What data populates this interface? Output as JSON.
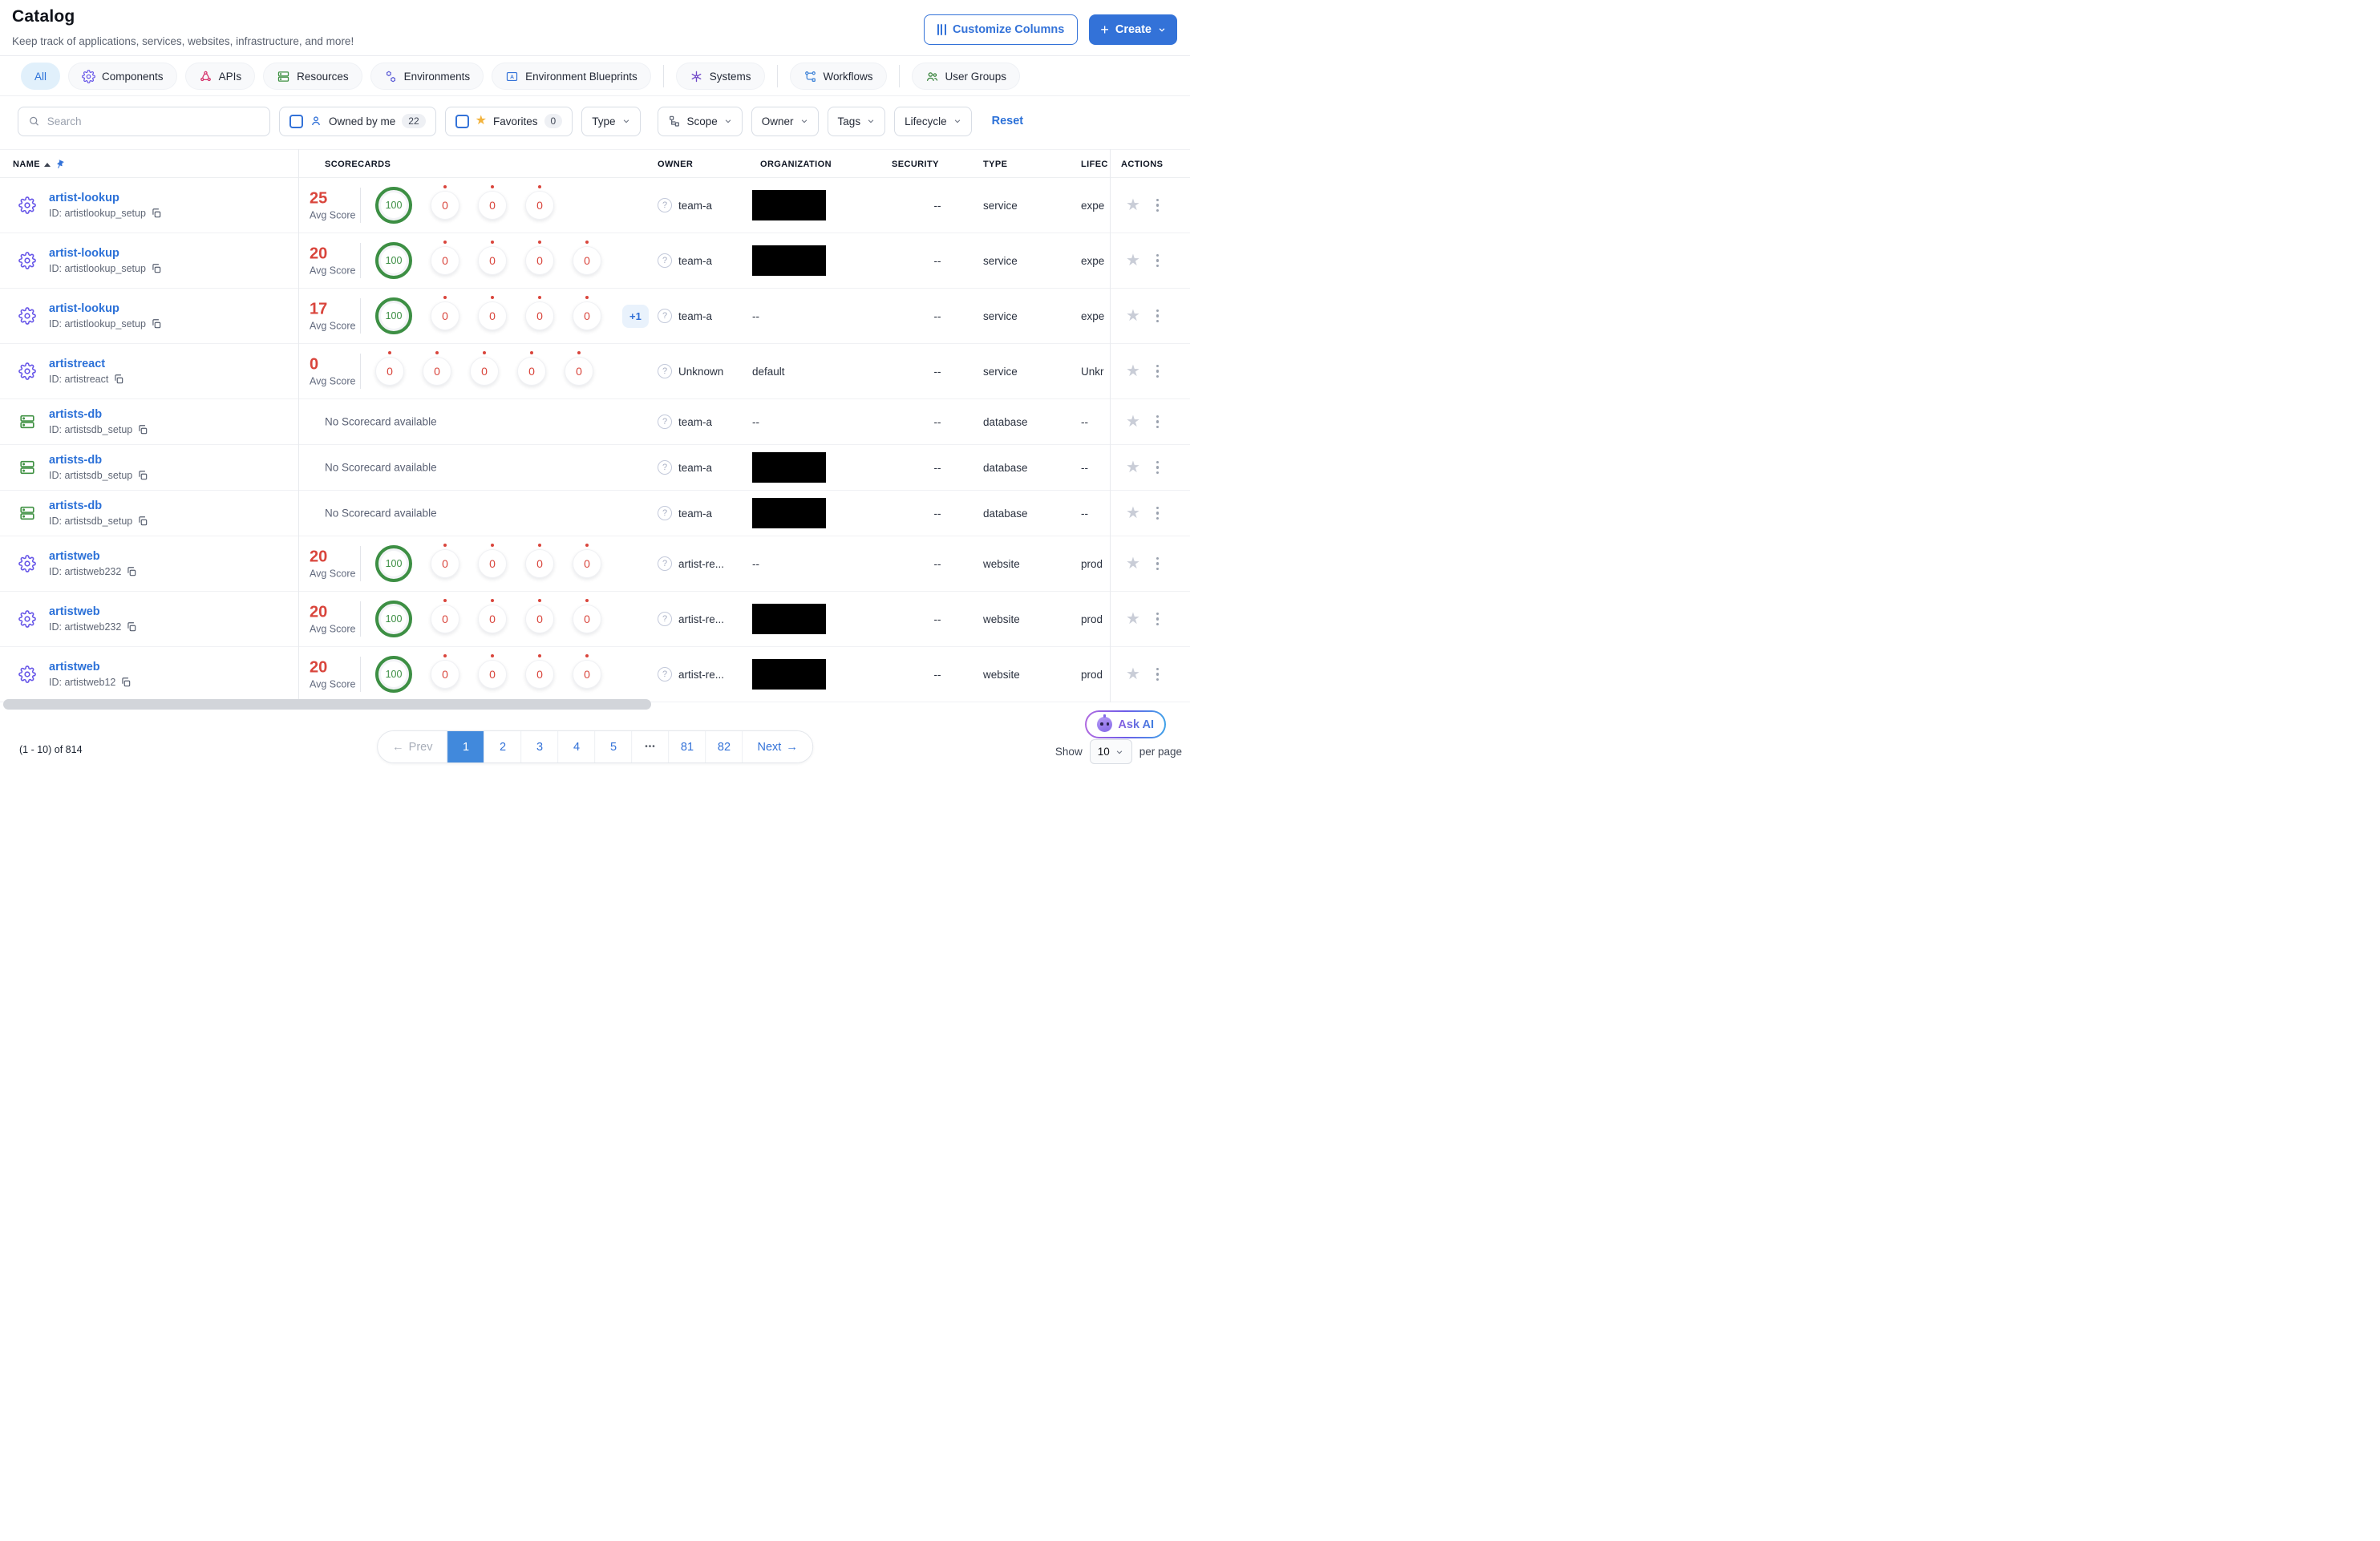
{
  "page": {
    "title": "Catalog",
    "subtitle": "Keep track of applications, services, websites, infrastructure, and more!"
  },
  "actions": {
    "customize_columns": "Customize Columns",
    "create": "Create"
  },
  "tabs": [
    {
      "label": "All",
      "icon": "none",
      "active": true
    },
    {
      "label": "Components",
      "icon": "gear-icon",
      "color": "#6554e8"
    },
    {
      "label": "APIs",
      "icon": "api-network-icon",
      "color": "#d6336c"
    },
    {
      "label": "Resources",
      "icon": "server-icon",
      "color": "#3f9142"
    },
    {
      "label": "Environments",
      "icon": "hexagons-icon",
      "color": "#5b5bd6"
    },
    {
      "label": "Environment Blueprints",
      "icon": "blueprint-icon",
      "color": "#3372d8"
    },
    {
      "label": "Systems",
      "icon": "system-star-icon",
      "color": "#7048c8",
      "divider_before": true
    },
    {
      "label": "Workflows",
      "icon": "workflow-icon",
      "color": "#4285d8",
      "divider_before": true
    },
    {
      "label": "User Groups",
      "icon": "users-icon",
      "color": "#2e7d32",
      "divider_before": true
    }
  ],
  "filters": {
    "search_placeholder": "Search",
    "owned_by_me": {
      "label": "Owned by me",
      "count": "22"
    },
    "favorites": {
      "label": "Favorites",
      "count": "0"
    },
    "type_label": "Type",
    "scope_label": "Scope",
    "owner_label": "Owner",
    "tags_label": "Tags",
    "lifecycle_label": "Lifecycle",
    "reset": "Reset"
  },
  "table": {
    "columns": {
      "name": "NAME",
      "scorecards": "SCORECARDS",
      "owner": "OWNER",
      "organization": "ORGANIZATION",
      "security": "SECURITY",
      "type": "TYPE",
      "lifecycle": "LIFEC",
      "actions": "ACTIONS"
    },
    "avg_score_label": "Avg Score",
    "no_scorecard_text": "No Scorecard available",
    "rows": [
      {
        "icon": "gear",
        "name": "artist-lookup",
        "id": "ID: artistlookup_setup",
        "avg": "25",
        "circles": [
          "100",
          "0",
          "0",
          "0"
        ],
        "owner": "team-a",
        "org": "redacted",
        "security": "--",
        "type": "service",
        "lifecycle": "expe"
      },
      {
        "icon": "gear",
        "name": "artist-lookup",
        "id": "ID: artistlookup_setup",
        "avg": "20",
        "circles": [
          "100",
          "0",
          "0",
          "0",
          "0"
        ],
        "owner": "team-a",
        "org": "redacted",
        "security": "--",
        "type": "service",
        "lifecycle": "expe"
      },
      {
        "icon": "gear",
        "name": "artist-lookup",
        "id": "ID: artistlookup_setup",
        "avg": "17",
        "circles": [
          "100",
          "0",
          "0",
          "0",
          "0"
        ],
        "extra": "+1",
        "owner": "team-a",
        "org": "--",
        "security": "--",
        "type": "service",
        "lifecycle": "expe"
      },
      {
        "icon": "gear",
        "name": "artistreact",
        "id": "ID: artistreact",
        "avg": "0",
        "circles": [
          "0",
          "0",
          "0",
          "0",
          "0"
        ],
        "owner": "Unknown",
        "org": "default",
        "security": "--",
        "type": "service",
        "lifecycle": "Unkr"
      },
      {
        "icon": "database",
        "name": "artists-db",
        "id": "ID: artistsdb_setup",
        "no_scorecard": true,
        "compact": true,
        "owner": "team-a",
        "org": "--",
        "security": "--",
        "type": "database",
        "lifecycle": "--"
      },
      {
        "icon": "database",
        "name": "artists-db",
        "id": "ID: artistsdb_setup",
        "no_scorecard": true,
        "compact": true,
        "owner": "team-a",
        "org": "redacted",
        "security": "--",
        "type": "database",
        "lifecycle": "--"
      },
      {
        "icon": "database",
        "name": "artists-db",
        "id": "ID: artistsdb_setup",
        "no_scorecard": true,
        "compact": true,
        "owner": "team-a",
        "org": "redacted",
        "security": "--",
        "type": "database",
        "lifecycle": "--"
      },
      {
        "icon": "gear",
        "name": "artistweb",
        "id": "ID: artistweb232",
        "avg": "20",
        "circles": [
          "100",
          "0",
          "0",
          "0",
          "0"
        ],
        "owner": "artist-re...",
        "org": "--",
        "security": "--",
        "type": "website",
        "lifecycle": "prod"
      },
      {
        "icon": "gear",
        "name": "artistweb",
        "id": "ID: artistweb232",
        "avg": "20",
        "circles": [
          "100",
          "0",
          "0",
          "0",
          "0"
        ],
        "owner": "artist-re...",
        "org": "redacted",
        "security": "--",
        "type": "website",
        "lifecycle": "prod"
      },
      {
        "icon": "gear",
        "name": "artistweb",
        "id": "ID: artistweb12",
        "avg": "20",
        "circles": [
          "100",
          "0",
          "0",
          "0",
          "0"
        ],
        "owner": "artist-re...",
        "org": "redacted",
        "security": "--",
        "type": "website",
        "lifecycle": "prod"
      }
    ]
  },
  "footer": {
    "range": "(1 - 10) of 814",
    "prev": "Prev",
    "next": "Next",
    "pages": [
      "1",
      "2",
      "3",
      "4",
      "5",
      "•••",
      "81",
      "82"
    ],
    "active_page": "1",
    "ask_ai": "Ask AI",
    "show_label": "Show",
    "page_size": "10",
    "per_page_label": "per page"
  },
  "colors": {
    "accent": "#3372d8",
    "score_red": "#d9453c",
    "score_green": "#3d8f44"
  }
}
